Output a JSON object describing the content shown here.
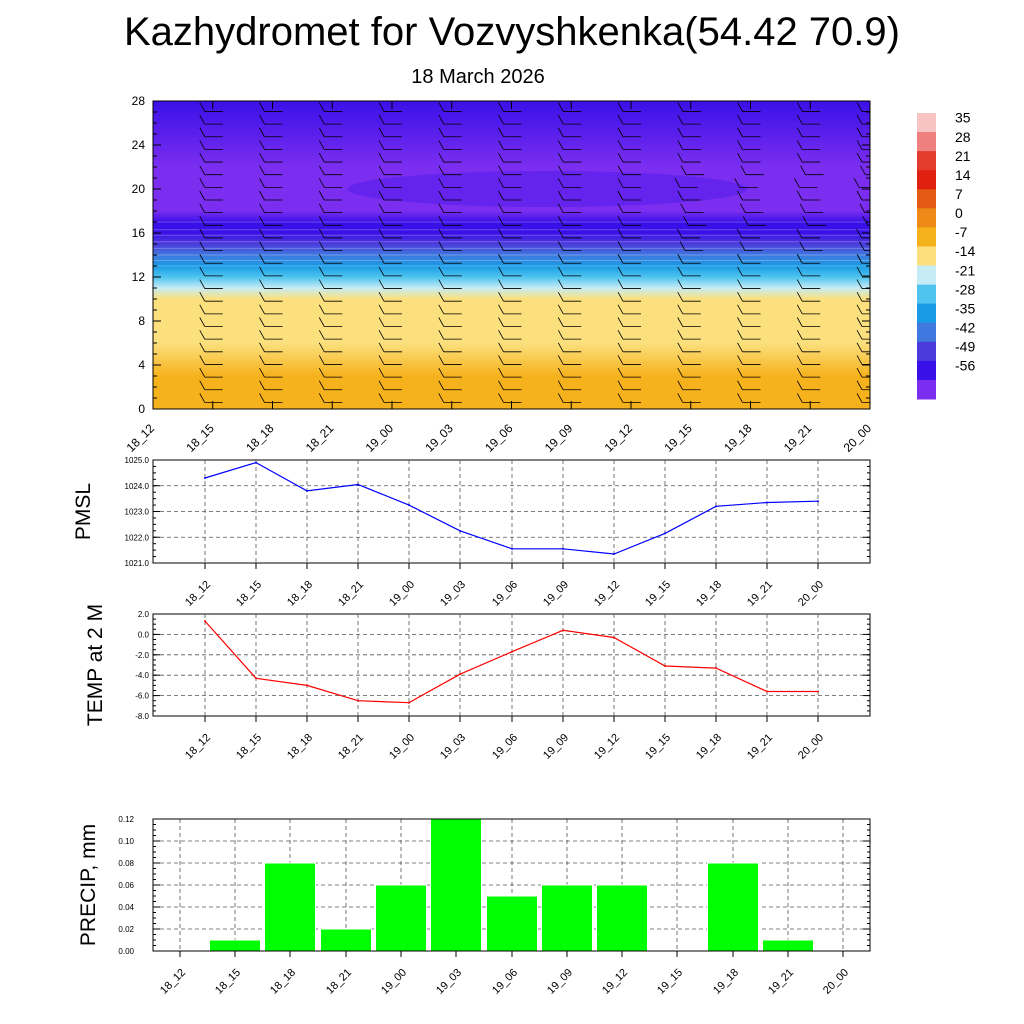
{
  "page": {
    "title": "Kazhydromet for Vozvyshkenka(54.42 70.9)",
    "date": "18 March 2026"
  },
  "chart_data": [
    {
      "type": "heatmap",
      "name": "temperature-wind-cross-section",
      "times": [
        "18_12",
        "18_15",
        "18_18",
        "18_21",
        "19_00",
        "19_03",
        "19_06",
        "19_09",
        "19_12",
        "19_15",
        "19_18",
        "19_21",
        "20_00"
      ],
      "ylim": [
        0,
        28
      ],
      "yticks": [
        "0",
        "4",
        "8",
        "12",
        "16",
        "20",
        "24",
        "28"
      ],
      "color_scale": {
        "levels": [
          "35",
          "28",
          "21",
          "14",
          "7",
          "0",
          "-7",
          "-14",
          "-21",
          "-28",
          "-35",
          "-42",
          "-49",
          "-56"
        ],
        "colors": [
          "#f7c3c3",
          "#f08080",
          "#e33b2e",
          "#e02010",
          "#e35a12",
          "#ef8a18",
          "#f6b21d",
          "#fbe07d",
          "#c6ecf5",
          "#4ec4ef",
          "#1a9be5",
          "#3f78df",
          "#4b3bdc",
          "#3a10e8",
          "#7b2ef0"
        ]
      },
      "temperature_profile": {
        "heights": [
          0,
          3,
          6,
          9,
          10,
          11,
          12,
          13,
          14,
          15,
          16,
          17,
          18,
          20,
          22,
          28
        ],
        "values": [
          -5,
          -7,
          -9,
          -11,
          -13,
          -17,
          -24,
          -32,
          -40,
          -47,
          -52,
          -55,
          -57,
          -58,
          -57,
          -56
        ]
      }
    },
    {
      "type": "line",
      "name": "pmsl",
      "ylabel": "PMSL",
      "categories": [
        "18_12",
        "18_15",
        "18_18",
        "18_21",
        "19_00",
        "19_03",
        "19_06",
        "19_09",
        "19_12",
        "19_15",
        "19_18",
        "19_21",
        "20_00"
      ],
      "values": [
        1024.3,
        1024.9,
        1023.8,
        1024.05,
        1023.25,
        1022.25,
        1021.55,
        1021.55,
        1021.35,
        1022.15,
        1023.2,
        1023.35,
        1023.4
      ],
      "ylim": [
        1021.0,
        1025.0
      ],
      "yticks": [
        "1021.0",
        "1022.0",
        "1023.0",
        "1024.0",
        "1025.0"
      ],
      "color": "#0000ff"
    },
    {
      "type": "line",
      "name": "temp-2m",
      "ylabel": "TEMP at 2 M",
      "categories": [
        "18_12",
        "18_15",
        "18_18",
        "18_21",
        "19_00",
        "19_03",
        "19_06",
        "19_09",
        "19_12",
        "19_15",
        "19_18",
        "19_21",
        "20_00"
      ],
      "values": [
        1.3,
        -4.3,
        -5.0,
        -6.5,
        -6.7,
        -3.9,
        -1.7,
        0.4,
        -0.3,
        -3.1,
        -3.3,
        -5.6,
        -5.6
      ],
      "ylim": [
        -8.0,
        2.0
      ],
      "yticks": [
        "-8.0",
        "-6.0",
        "-4.0",
        "-2.0",
        "0.0",
        "2.0"
      ],
      "color": "#ff0000"
    },
    {
      "type": "bar",
      "name": "precip",
      "ylabel": "PRECIP, mm",
      "categories": [
        "18_12",
        "18_15",
        "18_18",
        "18_21",
        "19_00",
        "19_03",
        "19_06",
        "19_09",
        "19_12",
        "19_15",
        "19_18",
        "19_21",
        "20_00"
      ],
      "values": [
        0.0,
        0.01,
        0.08,
        0.02,
        0.06,
        0.12,
        0.05,
        0.06,
        0.06,
        0.0,
        0.08,
        0.01,
        0.0
      ],
      "ylim": [
        0.0,
        0.12
      ],
      "yticks": [
        "0.00",
        "0.02",
        "0.04",
        "0.06",
        "0.08",
        "0.10",
        "0.12"
      ],
      "color": "#00ff00"
    }
  ]
}
